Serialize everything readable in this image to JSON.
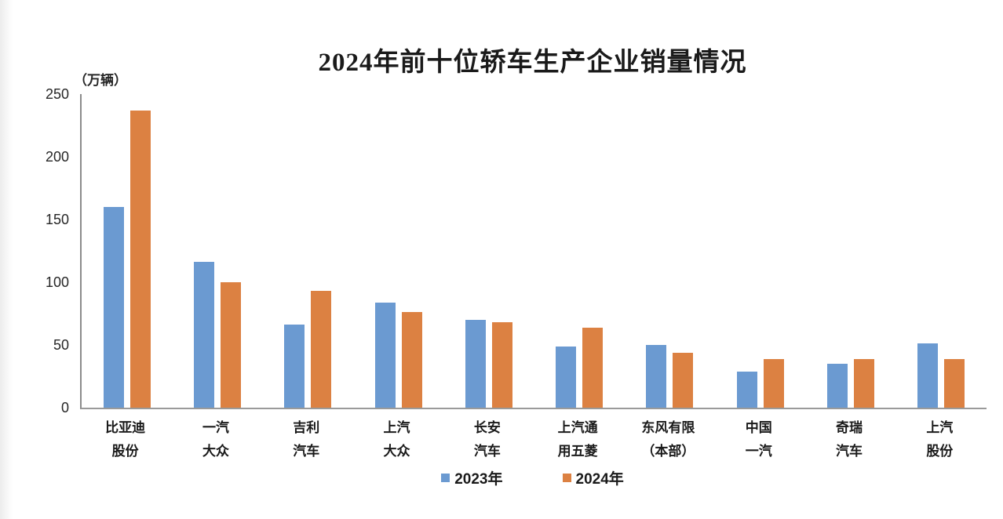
{
  "chart_data": {
    "type": "bar",
    "title": "2024年前十位轿车生产企业销量情况",
    "unit_label": "（万辆）",
    "xlabel": "",
    "ylabel": "（万辆）",
    "ylim": [
      0,
      250
    ],
    "yticks": [
      0,
      50,
      100,
      150,
      200,
      250
    ],
    "grid": false,
    "legend_position": "bottom",
    "categories": [
      "比亚迪\n股份",
      "一汽\n大众",
      "吉利\n汽车",
      "上汽\n大众",
      "长安\n汽车",
      "上汽通\n用五菱",
      "东风有限\n（本部）",
      "中国\n一汽",
      "奇瑞\n汽车",
      "上汽\n股份"
    ],
    "series": [
      {
        "name": "2023年",
        "color": "#6B9AD1",
        "values": [
          160,
          116,
          66,
          84,
          70,
          49,
          50,
          29,
          35,
          51
        ]
      },
      {
        "name": "2024年",
        "color": "#DC8142",
        "values": [
          237,
          100,
          93,
          76,
          68,
          64,
          44,
          39,
          39,
          39
        ]
      }
    ],
    "colors": {
      "axis_line": "#8C8C8C",
      "text": "#262626",
      "background": "#FFFFFF"
    }
  }
}
